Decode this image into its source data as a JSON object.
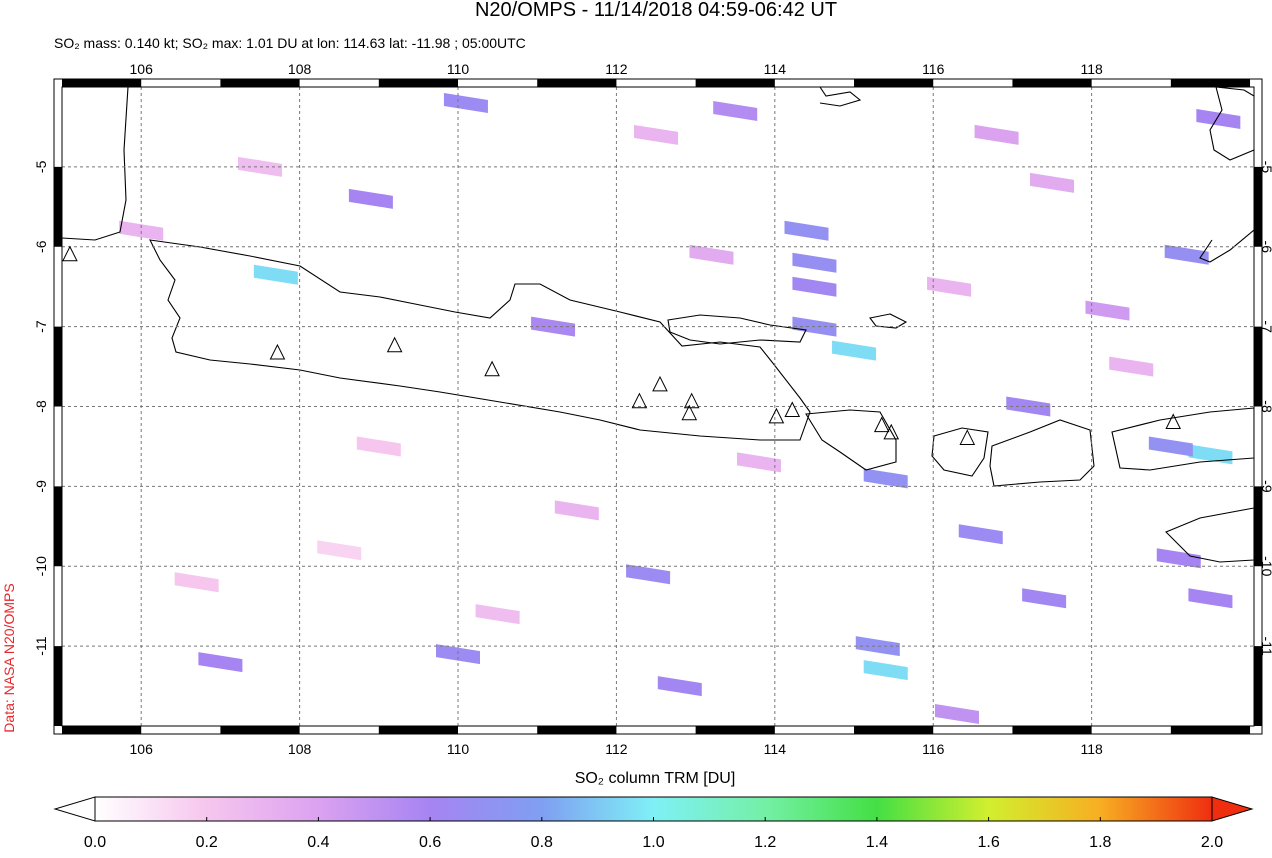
{
  "chart_data": {
    "type": "map",
    "title": "N20/OMPS - 11/14/2018 04:59-06:42 UT",
    "subtitle": "SO₂ mass: 0.140 kt; SO₂ max: 1.01 DU at lon: 114.63 lat: -11.98 ; 05:00UTC",
    "credit": "Data: NASA N20/OMPS",
    "colorbar_label": "SO₂ column TRM [DU]",
    "xlim": [
      105.0,
      120.05
    ],
    "ylim": [
      -12.0,
      -4.0
    ],
    "xticks": [
      106,
      108,
      110,
      112,
      114,
      116,
      118
    ],
    "yticks": [
      -5,
      -6,
      -7,
      -8,
      -9,
      -10,
      -11
    ],
    "grid": true,
    "clim": [
      0,
      2
    ],
    "colorscale": [
      "#ffffff",
      "#f6c6ee",
      "#dba2f0",
      "#a684f2",
      "#7f9ff2",
      "#7ff0f6",
      "#74f0a6",
      "#44df44",
      "#d2ef2e",
      "#f7ae22",
      "#ef2e10"
    ],
    "cticks": [
      {
        "value": 0,
        "label": "0.0"
      },
      {
        "value": 0.2,
        "label": "0.2"
      },
      {
        "value": 0.4,
        "label": "0.4"
      },
      {
        "value": 0.6,
        "label": "0.6"
      },
      {
        "value": 0.8,
        "label": "0.8"
      },
      {
        "value": 1,
        "label": "1.0"
      },
      {
        "value": 1.2,
        "label": "1.2"
      },
      {
        "value": 1.4,
        "label": "1.4"
      },
      {
        "value": 1.6,
        "label": "1.6"
      },
      {
        "value": 1.8,
        "label": "1.8"
      },
      {
        "value": 2,
        "label": "2.0"
      }
    ],
    "pixels": {
      "lon": [
        110.1,
        113.5,
        119.6,
        114.4,
        114.5,
        114.5,
        107.7,
        108.9,
        111.2,
        114.5,
        115.0,
        117.2,
        119.2,
        118.2,
        119.5,
        119.0,
        115.4,
        116.6,
        119.1,
        112.4,
        117.4,
        119.5,
        115.3,
        115.4,
        110.0,
        107.0,
        112.8,
        116.3,
        106.0,
        107.5,
        109.0,
        111.5,
        113.2,
        116.2,
        117.5,
        106.7,
        110.5,
        113.8,
        118.5,
        108.5,
        116.8,
        112.5
      ],
      "lat": [
        -4.2,
        -4.3,
        -4.4,
        -5.8,
        -6.2,
        -6.5,
        -6.35,
        -5.4,
        -7.0,
        -7.0,
        -7.3,
        -8.0,
        -6.1,
        -6.8,
        -8.6,
        -8.5,
        -8.9,
        -9.6,
        -9.9,
        -10.1,
        -10.4,
        -10.4,
        -11.0,
        -11.3,
        -11.1,
        -11.2,
        -11.5,
        -11.85,
        -5.8,
        -5.0,
        -8.5,
        -9.3,
        -6.1,
        -6.5,
        -5.2,
        -10.2,
        -10.6,
        -8.7,
        -7.5,
        -9.8,
        -4.6,
        -4.6
      ],
      "values": [
        0.65,
        0.55,
        0.6,
        0.7,
        0.68,
        0.62,
        0.95,
        0.6,
        0.58,
        0.68,
        0.95,
        0.62,
        0.68,
        0.45,
        0.95,
        0.7,
        0.7,
        0.65,
        0.6,
        0.65,
        0.62,
        0.6,
        0.7,
        0.95,
        0.65,
        0.6,
        0.62,
        0.5,
        0.3,
        0.25,
        0.2,
        0.3,
        0.35,
        0.3,
        0.35,
        0.2,
        0.25,
        0.3,
        0.3,
        0.15,
        0.4,
        0.3
      ]
    },
    "volcanoes": {
      "lon": [
        105.1,
        107.72,
        109.2,
        110.43,
        112.29,
        112.55,
        112.95,
        112.92,
        114.02,
        114.22,
        115.35,
        115.47,
        116.43,
        119.03
      ],
      "lat": [
        -6.1,
        -7.33,
        -7.24,
        -7.54,
        -7.94,
        -7.73,
        -7.94,
        -8.09,
        -8.13,
        -8.05,
        -8.24,
        -8.33,
        -8.4,
        -8.2
      ]
    }
  }
}
